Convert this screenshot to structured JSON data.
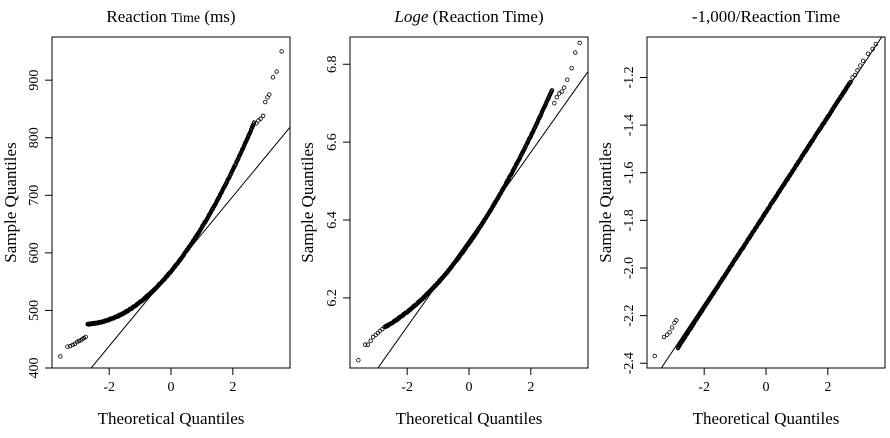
{
  "figure": {
    "background": "#ffffff",
    "ink": "#000000"
  },
  "chart_data": [
    {
      "type": "scatter",
      "title_parts": [
        {
          "text": "Reaction ",
          "style": "normal"
        },
        {
          "text": "Time",
          "style": "small"
        },
        {
          "text": " (ms)",
          "style": "normal"
        }
      ],
      "title": "Reaction Time (ms)",
      "xlabel": "Theoretical Quantiles",
      "ylabel": "Sample Quantiles",
      "xlim": [
        -3.85,
        3.85
      ],
      "ylim": [
        400,
        975
      ],
      "xticks": [
        -2,
        0,
        2
      ],
      "xtick_labels": [
        "-2",
        "0",
        "2"
      ],
      "yticks": [
        400,
        500,
        600,
        700,
        800,
        900
      ],
      "ytick_labels": [
        "400",
        "500",
        "600",
        "700",
        "800",
        "900"
      ],
      "grid": false,
      "reference_line": {
        "intercept": 568,
        "slope": 65
      },
      "sample_quantiles": {
        "intercept": 568,
        "slope": 65,
        "curvature": 11.5,
        "x_range": [
          -2.7,
          2.7
        ]
      },
      "tail_points": [
        {
          "x": -3.58,
          "y": 420
        },
        {
          "x": -3.35,
          "y": 437
        },
        {
          "x": -3.26,
          "y": 438
        },
        {
          "x": -3.18,
          "y": 440
        },
        {
          "x": -3.11,
          "y": 442
        },
        {
          "x": -3.04,
          "y": 445
        },
        {
          "x": -2.98,
          "y": 447
        },
        {
          "x": -2.92,
          "y": 448
        },
        {
          "x": -2.87,
          "y": 450
        },
        {
          "x": -2.82,
          "y": 452
        },
        {
          "x": -2.76,
          "y": 454
        },
        {
          "x": 2.76,
          "y": 825
        },
        {
          "x": 2.83,
          "y": 830
        },
        {
          "x": 2.9,
          "y": 833
        },
        {
          "x": 2.98,
          "y": 838
        },
        {
          "x": 3.05,
          "y": 862
        },
        {
          "x": 3.12,
          "y": 870
        },
        {
          "x": 3.18,
          "y": 875
        },
        {
          "x": 3.3,
          "y": 905
        },
        {
          "x": 3.42,
          "y": 915
        },
        {
          "x": 3.58,
          "y": 950
        }
      ]
    },
    {
      "type": "scatter",
      "title_parts": [
        {
          "text": "Loge",
          "style": "italic"
        },
        {
          "text": " (Reaction Time)",
          "style": "normal"
        }
      ],
      "title": "Loge (Reaction Time)",
      "xlabel": "Theoretical Quantiles",
      "ylabel": "Sample Quantiles",
      "xlim": [
        -3.85,
        3.85
      ],
      "ylim": [
        6.02,
        6.87
      ],
      "xticks": [
        -2,
        0,
        2
      ],
      "xtick_labels": [
        "-2",
        "0",
        "2"
      ],
      "yticks": [
        6.2,
        6.4,
        6.6,
        6.8
      ],
      "ytick_labels": [
        "6.2",
        "6.4",
        "6.6",
        "6.8"
      ],
      "grid": false,
      "reference_line": {
        "intercept": 6.35,
        "slope": 0.112
      },
      "sample_quantiles": {
        "intercept": 6.34,
        "slope": 0.113,
        "curvature": 0.0125,
        "x_range": [
          -2.7,
          2.7
        ]
      },
      "tail_points": [
        {
          "x": -3.58,
          "y": 6.04
        },
        {
          "x": -3.36,
          "y": 6.08
        },
        {
          "x": -3.27,
          "y": 6.08
        },
        {
          "x": -3.18,
          "y": 6.09
        },
        {
          "x": -3.1,
          "y": 6.1
        },
        {
          "x": -3.02,
          "y": 6.105
        },
        {
          "x": -2.95,
          "y": 6.11
        },
        {
          "x": -2.88,
          "y": 6.115
        },
        {
          "x": -2.8,
          "y": 6.12
        },
        {
          "x": -2.74,
          "y": 6.125
        },
        {
          "x": 2.76,
          "y": 6.7
        },
        {
          "x": 2.84,
          "y": 6.715
        },
        {
          "x": 2.92,
          "y": 6.725
        },
        {
          "x": 3.0,
          "y": 6.73
        },
        {
          "x": 3.08,
          "y": 6.74
        },
        {
          "x": 3.18,
          "y": 6.76
        },
        {
          "x": 3.32,
          "y": 6.79
        },
        {
          "x": 3.44,
          "y": 6.83
        },
        {
          "x": 3.58,
          "y": 6.855
        }
      ]
    },
    {
      "type": "scatter",
      "title_parts": [
        {
          "text": "-1,000/Reaction Time",
          "style": "normal"
        }
      ],
      "title": "-1,000/Reaction Time",
      "xlabel": "Theoretical Quantiles",
      "ylabel": "Sample Quantiles",
      "xlim": [
        -3.85,
        3.85
      ],
      "ylim": [
        -2.42,
        -1.03
      ],
      "xticks": [
        -2,
        0,
        2
      ],
      "xtick_labels": [
        "-2",
        "0",
        "2"
      ],
      "yticks": [
        -2.4,
        -2.2,
        -2.0,
        -1.8,
        -1.6,
        -1.4,
        -1.2
      ],
      "ytick_labels": [
        "-2.4",
        "-2.2",
        "-2.0",
        "-1.8",
        "-1.6",
        "-1.4",
        "-1.2"
      ],
      "grid": false,
      "reference_line": {
        "intercept": -1.76,
        "slope": 0.195
      },
      "sample_quantiles": {
        "intercept": -1.765,
        "slope": 0.2,
        "curvature": 0.0,
        "x_range": [
          -2.85,
          2.75
        ]
      },
      "tail_points": [
        {
          "x": -3.6,
          "y": -2.37
        },
        {
          "x": -3.3,
          "y": -2.29
        },
        {
          "x": -3.2,
          "y": -2.28
        },
        {
          "x": -3.12,
          "y": -2.27
        },
        {
          "x": -3.04,
          "y": -2.25
        },
        {
          "x": -2.96,
          "y": -2.23
        },
        {
          "x": -2.9,
          "y": -2.22
        },
        {
          "x": 2.8,
          "y": -1.2
        },
        {
          "x": 2.88,
          "y": -1.19
        },
        {
          "x": 2.96,
          "y": -1.17
        },
        {
          "x": 3.05,
          "y": -1.15
        },
        {
          "x": 3.14,
          "y": -1.13
        },
        {
          "x": 3.3,
          "y": -1.1
        },
        {
          "x": 3.45,
          "y": -1.08
        },
        {
          "x": 3.55,
          "y": -1.06
        }
      ]
    }
  ]
}
